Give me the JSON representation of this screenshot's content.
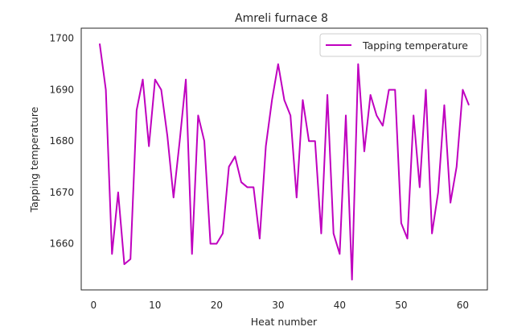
{
  "chart_data": {
    "type": "line",
    "title": "Amreli furnace 8",
    "xlabel": "Heat number",
    "ylabel": "Tapping temperature",
    "xlim": [
      -2,
      64
    ],
    "ylim": [
      1651,
      1702
    ],
    "xticks": [
      0,
      10,
      20,
      30,
      40,
      50,
      60
    ],
    "yticks": [
      1660,
      1670,
      1680,
      1690,
      1700
    ],
    "grid": false,
    "legend_position": "top-right",
    "series": [
      {
        "name": "Tapping temperature",
        "color": "#bf00bf",
        "x": [
          1,
          2,
          3,
          4,
          5,
          6,
          7,
          8,
          9,
          10,
          11,
          12,
          13,
          14,
          15,
          16,
          17,
          18,
          19,
          20,
          21,
          22,
          23,
          24,
          25,
          26,
          27,
          28,
          29,
          30,
          31,
          32,
          33,
          34,
          35,
          36,
          37,
          38,
          39,
          40,
          41,
          42,
          43,
          44,
          45,
          46,
          47,
          48,
          49,
          50,
          51,
          52,
          53,
          54,
          55,
          56,
          57,
          58,
          59,
          60,
          61
        ],
        "values": [
          1699,
          1690,
          1658,
          1670,
          1656,
          1657,
          1686,
          1692,
          1679,
          1692,
          1690,
          1681,
          1669,
          1680,
          1692,
          1658,
          1685,
          1680,
          1660,
          1660,
          1662,
          1675,
          1677,
          1672,
          1671,
          1671,
          1661,
          1679,
          1688,
          1695,
          1688,
          1685,
          1669,
          1688,
          1680,
          1680,
          1662,
          1689,
          1662,
          1658,
          1685,
          1653,
          1695,
          1678,
          1689,
          1685,
          1683,
          1690,
          1690,
          1664,
          1661,
          1685,
          1671,
          1690,
          1662,
          1670,
          1687,
          1668,
          1675,
          1690,
          1687
        ]
      }
    ]
  }
}
